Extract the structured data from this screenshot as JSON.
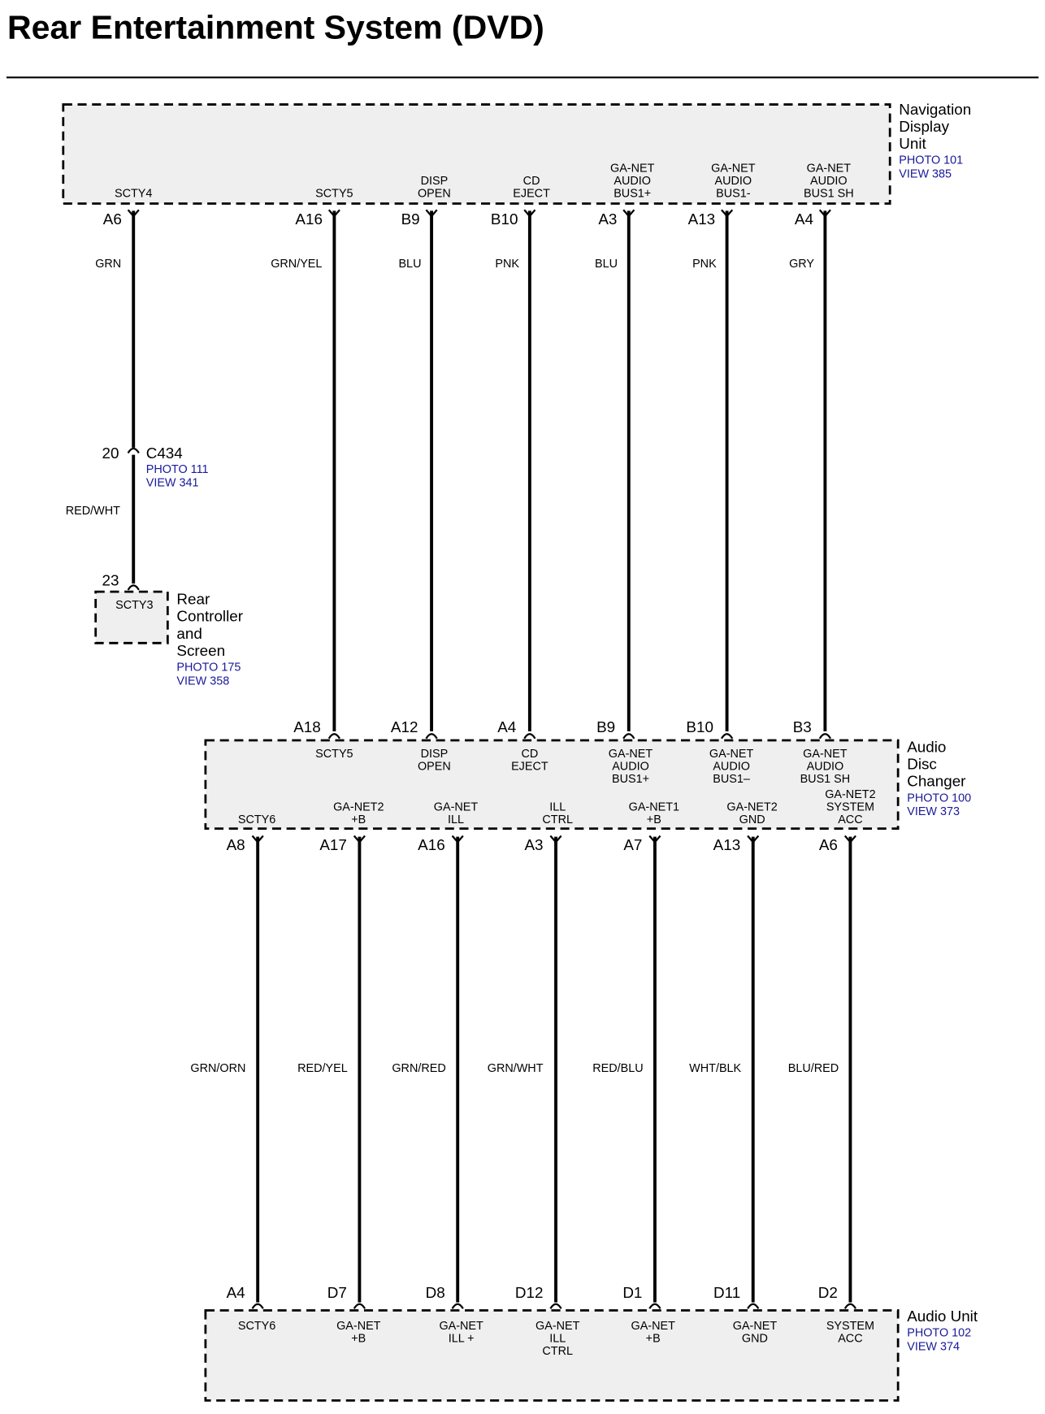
{
  "title": "Rear Entertainment System (DVD)",
  "navigation_display_unit": {
    "name": [
      "Navigation",
      "Display",
      "Unit"
    ],
    "photo": "PHOTO 101",
    "view": "VIEW 385"
  },
  "connector_c434": {
    "name": "C434",
    "pin": "20",
    "photo": "PHOTO 111",
    "view": "VIEW 341"
  },
  "rear_controller_and_screen": {
    "name": [
      "Rear",
      "Controller",
      "and",
      "Screen"
    ],
    "photo": "PHOTO 175",
    "view": "VIEW 358",
    "pin": "23",
    "signal": [
      "SCTY3"
    ]
  },
  "audio_disc_changer": {
    "name": [
      "Audio",
      "Disc",
      "Changer"
    ],
    "photo": "PHOTO 100",
    "view": "VIEW 373"
  },
  "audio_unit": {
    "name": [
      "Audio Unit"
    ],
    "photo": "PHOTO 102",
    "view": "VIEW 374"
  },
  "upper_circuits": [
    {
      "nav_pin": "A6",
      "nav_signal": [
        "SCTY4"
      ],
      "wire": "GRN",
      "wire2": "RED/WHT"
    },
    {
      "nav_pin": "A16",
      "nav_signal": [
        "SCTY5"
      ],
      "wire": "GRN/YEL",
      "changer_pin": "A18",
      "changer_signal": [
        "SCTY5"
      ]
    },
    {
      "nav_pin": "B9",
      "nav_signal": [
        "DISP",
        "OPEN"
      ],
      "wire": "BLU",
      "changer_pin": "A12",
      "changer_signal": [
        "DISP",
        "OPEN"
      ]
    },
    {
      "nav_pin": "B10",
      "nav_signal": [
        "CD",
        "EJECT"
      ],
      "wire": "PNK",
      "changer_pin": "A4",
      "changer_signal": [
        "CD",
        "EJECT"
      ]
    },
    {
      "nav_pin": "A3",
      "nav_signal": [
        "GA-NET",
        "AUDIO",
        "BUS1+"
      ],
      "wire": "BLU",
      "changer_pin": "B9",
      "changer_signal": [
        "GA-NET",
        "AUDIO",
        "BUS1+"
      ]
    },
    {
      "nav_pin": "A13",
      "nav_signal": [
        "GA-NET",
        "AUDIO",
        "BUS1-"
      ],
      "wire": "PNK",
      "changer_pin": "B10",
      "changer_signal": [
        "GA-NET",
        "AUDIO",
        "BUS1–"
      ]
    },
    {
      "nav_pin": "A4",
      "nav_signal": [
        "GA-NET",
        "AUDIO",
        "BUS1 SH"
      ],
      "wire": "GRY",
      "changer_pin": "B3",
      "changer_signal": [
        "GA-NET",
        "AUDIO",
        "BUS1 SH"
      ]
    }
  ],
  "lower_circuits": [
    {
      "changer_pin": "A8",
      "changer_signal": [
        "SCTY6"
      ],
      "wire": "GRN/ORN",
      "unit_pin": "A4",
      "unit_signal": [
        "SCTY6"
      ]
    },
    {
      "changer_pin": "A17",
      "changer_signal": [
        "GA-NET2",
        "+B"
      ],
      "wire": "RED/YEL",
      "unit_pin": "D7",
      "unit_signal": [
        "GA-NET",
        "+B"
      ]
    },
    {
      "changer_pin": "A16",
      "changer_signal": [
        "GA-NET",
        "ILL"
      ],
      "wire": "GRN/RED",
      "unit_pin": "D8",
      "unit_signal": [
        "GA-NET",
        "ILL +"
      ]
    },
    {
      "changer_pin": "A3",
      "changer_signal": [
        "ILL",
        "CTRL"
      ],
      "wire": "GRN/WHT",
      "unit_pin": "D12",
      "unit_signal": [
        "GA-NET",
        "ILL",
        "CTRL"
      ]
    },
    {
      "changer_pin": "A7",
      "changer_signal": [
        "GA-NET1",
        "+B"
      ],
      "wire": "RED/BLU",
      "unit_pin": "D1",
      "unit_signal": [
        "GA-NET",
        "+B"
      ]
    },
    {
      "changer_pin": "A13",
      "changer_signal": [
        "GA-NET2",
        "GND"
      ],
      "wire": "WHT/BLK",
      "unit_pin": "D11",
      "unit_signal": [
        "GA-NET",
        "GND"
      ]
    },
    {
      "changer_pin": "A6",
      "changer_signal": [
        "GA-NET2",
        "SYSTEM",
        "ACC"
      ],
      "wire": "BLU/RED",
      "unit_pin": "D2",
      "unit_signal": [
        "SYSTEM",
        "ACC"
      ]
    }
  ],
  "colors": {
    "reference_text": "#1a1a9a",
    "component_fill": "#efefef",
    "wire": "#000000"
  }
}
